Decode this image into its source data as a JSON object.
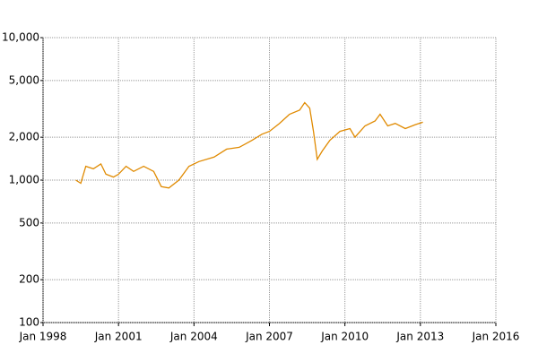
{
  "chart_data": {
    "type": "line",
    "log_scale_y": true,
    "grid": true,
    "x": [
      1999.3,
      1999.5,
      1999.7,
      2000.0,
      2000.3,
      2000.5,
      2000.8,
      2001.0,
      2001.3,
      2001.6,
      2002.0,
      2002.4,
      2002.7,
      2003.0,
      2003.4,
      2003.8,
      2004.2,
      2004.8,
      2005.3,
      2005.8,
      2006.3,
      2006.7,
      2007.0,
      2007.4,
      2007.8,
      2008.2,
      2008.4,
      2008.6,
      2008.75,
      2008.9,
      2009.1,
      2009.4,
      2009.8,
      2010.2,
      2010.4,
      2010.8,
      2011.2,
      2011.4,
      2011.7,
      2012.0,
      2012.4,
      2012.8,
      2013.1
    ],
    "series": [
      {
        "color": "#e08a00",
        "values": [
          1000,
          950,
          1250,
          1200,
          1300,
          1100,
          1050,
          1100,
          1250,
          1150,
          1250,
          1150,
          900,
          880,
          1000,
          1250,
          1350,
          1450,
          1650,
          1700,
          1900,
          2100,
          2200,
          2500,
          2900,
          3100,
          3500,
          3200,
          2200,
          1400,
          1600,
          1900,
          2200,
          2300,
          2000,
          2400,
          2600,
          2900,
          2400,
          2500,
          2300,
          2450,
          2550
        ]
      }
    ],
    "xlim": [
      1998,
      2016
    ],
    "xticks": [
      {
        "value": 1998,
        "label": "Jan 1998"
      },
      {
        "value": 2001,
        "label": "Jan 2001"
      },
      {
        "value": 2004,
        "label": "Jan 2004"
      },
      {
        "value": 2007,
        "label": "Jan 2007"
      },
      {
        "value": 2010,
        "label": "Jan 2010"
      },
      {
        "value": 2013,
        "label": "Jan 2013"
      },
      {
        "value": 2016,
        "label": "Jan 2016"
      }
    ],
    "ylim": [
      100,
      10000
    ],
    "yticks": [
      100,
      200,
      500,
      {
        "value": 1000,
        "label": "1,000"
      },
      {
        "value": 2000,
        "label": "2,000"
      },
      {
        "value": 5000,
        "label": "5,000"
      },
      {
        "value": 10000,
        "label": "10,000"
      }
    ]
  }
}
